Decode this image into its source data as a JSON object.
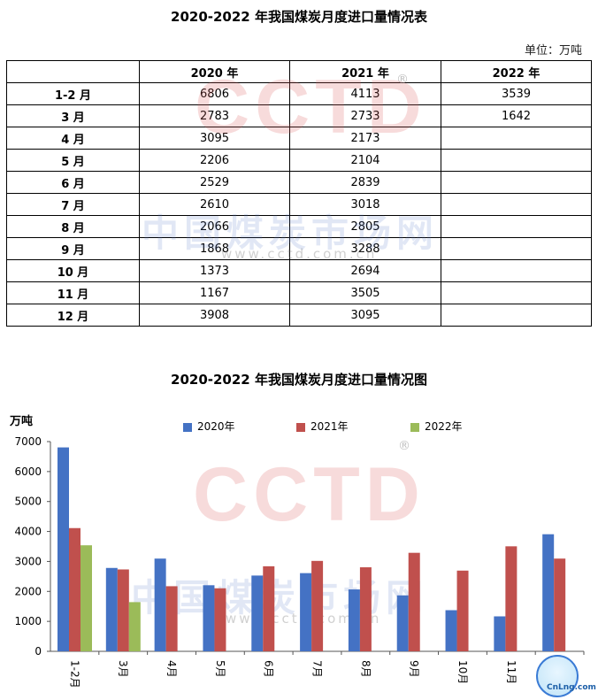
{
  "table": {
    "title": "2020-2022 年我国煤炭月度进口量情况表",
    "unit_label": "单位：万吨",
    "header": [
      "",
      "2020 年",
      "2021 年",
      "2022 年"
    ],
    "rows": [
      [
        "1-2 月",
        "6806",
        "4113",
        "3539"
      ],
      [
        "3 月",
        "2783",
        "2733",
        "1642"
      ],
      [
        "4 月",
        "3095",
        "2173",
        ""
      ],
      [
        "5 月",
        "2206",
        "2104",
        ""
      ],
      [
        "6 月",
        "2529",
        "2839",
        ""
      ],
      [
        "7 月",
        "2610",
        "3018",
        ""
      ],
      [
        "8 月",
        "2066",
        "2805",
        ""
      ],
      [
        "9 月",
        "1868",
        "3288",
        ""
      ],
      [
        "10 月",
        "1373",
        "2694",
        ""
      ],
      [
        "11 月",
        "1167",
        "3505",
        ""
      ],
      [
        "12 月",
        "3908",
        "3095",
        ""
      ]
    ]
  },
  "watermark": {
    "brand": "CCTD",
    "registered": "®",
    "cn": "中国煤炭市场网",
    "url": "www.cctd.com.cn"
  },
  "logo": {
    "text": "CnLng.com"
  },
  "chart_data": {
    "type": "bar",
    "title": "2020-2022 年我国煤炭月度进口量情况图",
    "ylabel": "万吨",
    "xlabel": "",
    "ylim": [
      0,
      7000
    ],
    "yticks": [
      0,
      1000,
      2000,
      3000,
      4000,
      5000,
      6000,
      7000
    ],
    "categories": [
      "1-2月",
      "3月",
      "4月",
      "5月",
      "6月",
      "7月",
      "8月",
      "9月",
      "10月",
      "11月",
      "12月"
    ],
    "legend_position": "top-center",
    "grid": false,
    "series": [
      {
        "name": "2020年",
        "color": "#4472C4",
        "values": [
          6806,
          2783,
          3095,
          2206,
          2529,
          2610,
          2066,
          1868,
          1373,
          1167,
          3908
        ]
      },
      {
        "name": "2021年",
        "color": "#C0504D",
        "values": [
          4113,
          2733,
          2173,
          2104,
          2839,
          3018,
          2805,
          3288,
          2694,
          3505,
          3095
        ]
      },
      {
        "name": "2022年",
        "color": "#9BBB59",
        "values": [
          3539,
          1642,
          null,
          null,
          null,
          null,
          null,
          null,
          null,
          null,
          null
        ]
      }
    ]
  }
}
